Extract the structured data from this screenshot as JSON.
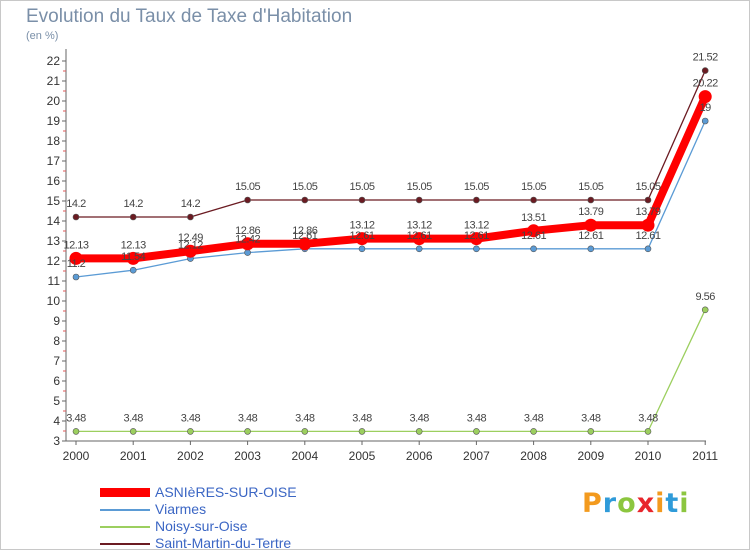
{
  "header": {
    "title": "Evolution du Taux de Taxe d'Habitation",
    "unit": "(en %)"
  },
  "logo": {
    "text": "Proxiti",
    "letters": [
      "P",
      "r",
      "o",
      "x",
      "i",
      "t",
      "i"
    ],
    "colors": [
      "#f39a1e",
      "#2f9bd9",
      "#8cc63f",
      "#e8262c",
      "#f39a1e",
      "#2f9bd9",
      "#8cc63f"
    ]
  },
  "chart_data": {
    "type": "line",
    "x": [
      "2000",
      "2001",
      "2002",
      "2003",
      "2004",
      "2005",
      "2006",
      "2007",
      "2008",
      "2009",
      "2010",
      "2011"
    ],
    "ylim": [
      3,
      22
    ],
    "yticks": [
      3,
      4,
      5,
      6,
      7,
      8,
      9,
      10,
      11,
      12,
      13,
      14,
      15,
      16,
      17,
      18,
      19,
      20,
      21,
      22
    ],
    "grid": false,
    "legend": "bottom-left",
    "series": [
      {
        "name": "Saint-Martin-du-Tertre",
        "color": "#6b1b22",
        "values": [
          14.2,
          14.2,
          14.2,
          15.05,
          15.05,
          15.05,
          15.05,
          15.05,
          15.05,
          15.05,
          15.05,
          21.52
        ],
        "labels": [
          "14.2",
          "14.2",
          "14.2",
          "15.05",
          "15.05",
          "15.05",
          "15.05",
          "15.05",
          "15.05",
          "15.05",
          "15.05",
          "21.52"
        ]
      },
      {
        "name": "Viarmes",
        "color": "#5b9bd5",
        "values": [
          11.2,
          11.54,
          12.12,
          12.42,
          12.61,
          12.61,
          12.61,
          12.61,
          12.61,
          12.61,
          12.61,
          19
        ],
        "labels": [
          "11.2",
          "11.54",
          "12.12",
          "12.42",
          "12.61",
          "12.61",
          "12.61",
          "12.61",
          "12.61",
          "12.61",
          "12.61",
          "19"
        ]
      },
      {
        "name": "Noisy-sur-Oise",
        "color": "#9ccf5f",
        "values": [
          3.48,
          3.48,
          3.48,
          3.48,
          3.48,
          3.48,
          3.48,
          3.48,
          3.48,
          3.48,
          3.48,
          9.56
        ],
        "labels": [
          "3.48",
          "3.48",
          "3.48",
          "3.48",
          "3.48",
          "3.48",
          "3.48",
          "3.48",
          "3.48",
          "3.48",
          "3.48",
          "9.56"
        ]
      },
      {
        "name": "ASNIèRES-SUR-OISE",
        "color": "#ff0000",
        "values": [
          12.13,
          12.13,
          12.49,
          12.86,
          12.86,
          13.12,
          13.12,
          13.12,
          13.51,
          13.79,
          13.79,
          20.22
        ],
        "labels": [
          "12.13",
          "12.13",
          "12.49",
          "12.86",
          "12.86",
          "13.12",
          "13.12",
          "13.12",
          "13.51",
          "13.79",
          "13.79",
          "20.22"
        ]
      }
    ]
  },
  "legend_items": [
    {
      "name": "ASNIèRES-SUR-OISE",
      "color": "#ff0000"
    },
    {
      "name": "Viarmes",
      "color": "#5b9bd5"
    },
    {
      "name": "Noisy-sur-Oise",
      "color": "#9ccf5f"
    },
    {
      "name": "Saint-Martin-du-Tertre",
      "color": "#6b1b22"
    }
  ]
}
